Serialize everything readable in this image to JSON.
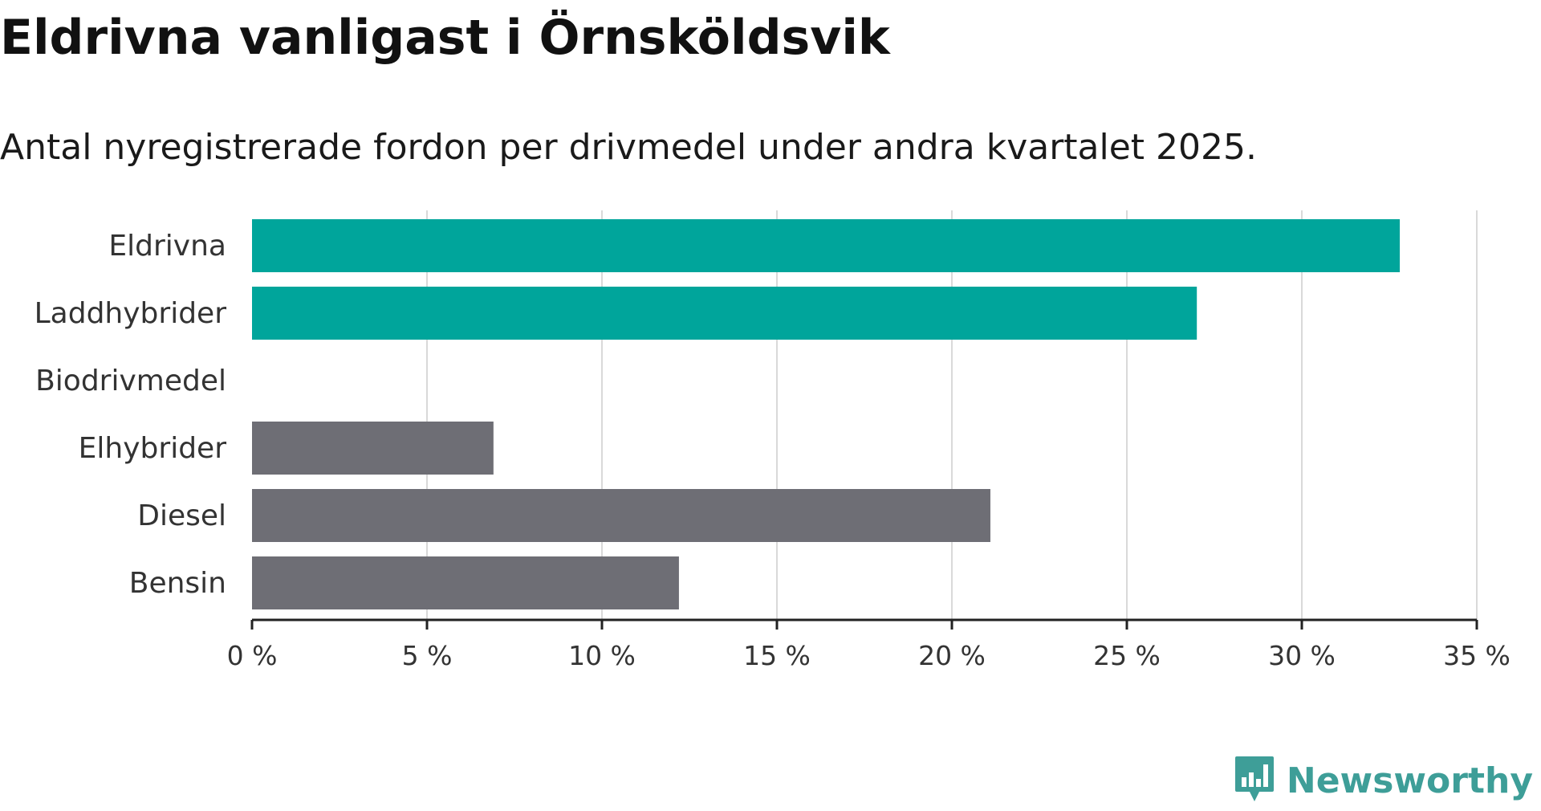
{
  "header": {
    "title": "Eldrivna vanligast i Örnsköldsvik",
    "subtitle": "Antal nyregistrerade fordon per drivmedel under andra kvartalet 2025."
  },
  "brand": {
    "name": "Newsworthy",
    "color": "#3e9e98",
    "icon": "bar-chart-bubble-icon"
  },
  "colors": {
    "highlight": "#00a59b",
    "other": "#6e6e75",
    "grid": "#d9d9d9",
    "axis": "#222222"
  },
  "chart_data": {
    "type": "bar",
    "orientation": "horizontal",
    "categories": [
      "Eldrivna",
      "Laddhybrider",
      "Biodrivmedel",
      "Elhybrider",
      "Diesel",
      "Bensin"
    ],
    "values": [
      32.8,
      27.0,
      0,
      6.9,
      21.1,
      12.2
    ],
    "highlight": [
      true,
      true,
      true,
      false,
      false,
      false
    ],
    "xlim": [
      0,
      35
    ],
    "xticks": [
      0,
      5,
      10,
      15,
      20,
      25,
      30,
      35
    ],
    "xtick_labels": [
      "0 %",
      "5 %",
      "10 %",
      "15 %",
      "20 %",
      "25 %",
      "30 %",
      "35 %"
    ],
    "grid": true
  }
}
